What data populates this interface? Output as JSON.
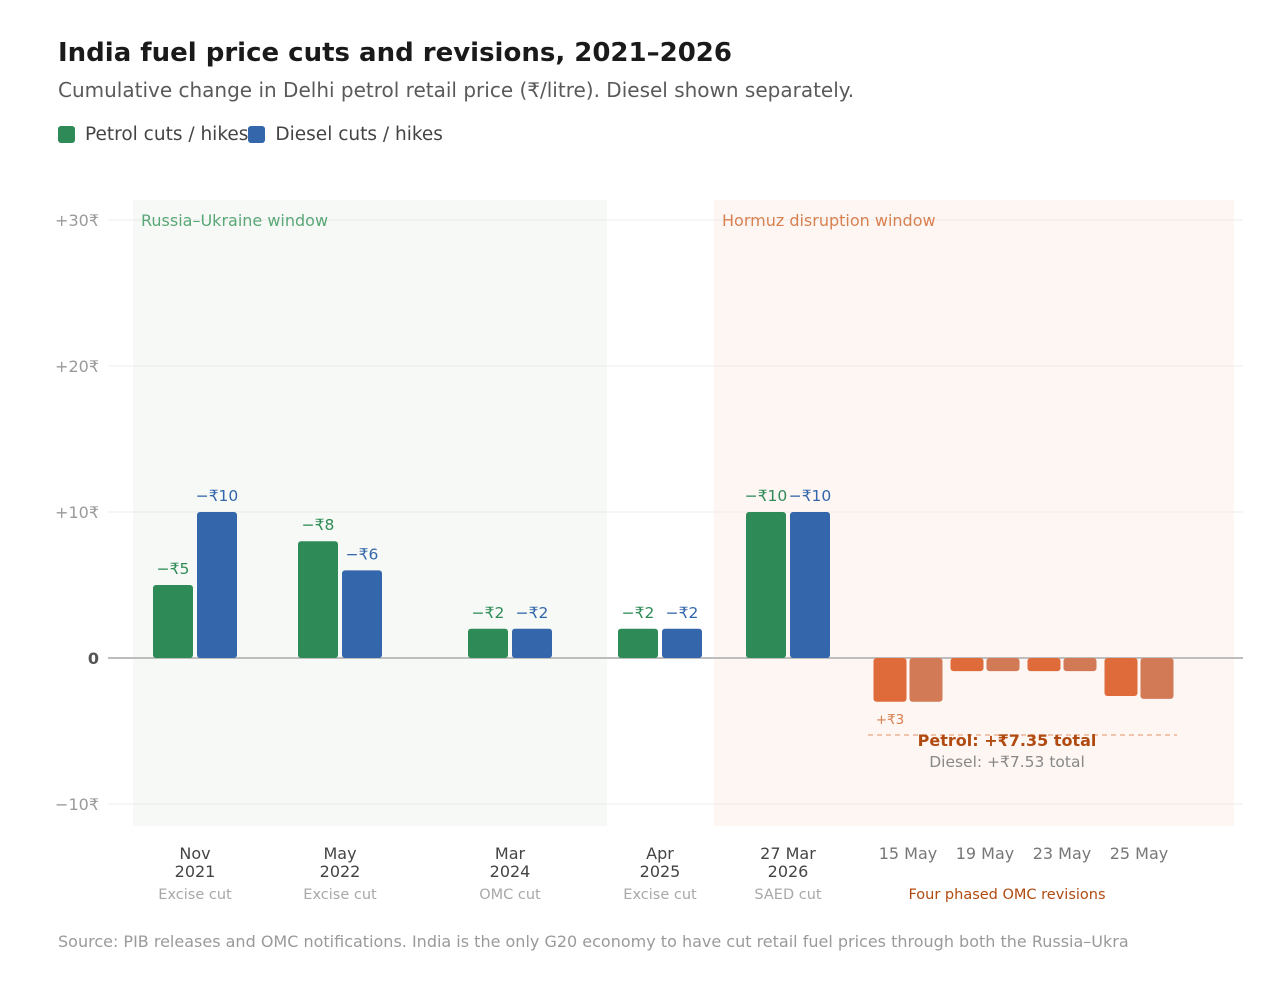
{
  "title": "India fuel price cuts and revisions, 2021–2026",
  "subtitle": "Cumulative change in Delhi petrol retail price (₹/litre). Diesel shown separately.",
  "legend": [
    {
      "label": "Petrol cuts / hikes",
      "color": "#2e8b57"
    },
    {
      "label": "Diesel cuts / hikes",
      "color": "#3366aa"
    }
  ],
  "source": "Source: PIB releases and OMC notifications. India is the only G20 economy to have cut retail fuel prices through both the Russia–Ukra",
  "colors": {
    "petrol": "#2e8b57",
    "diesel": "#3366aa",
    "petrol_hike": "#e06b3a",
    "diesel_hike": "#d27a55",
    "window_russia_bg": "#f6f9f5",
    "window_hormuz_bg": "#fdf6f3",
    "window_russia_text": "#5aa777",
    "window_hormuz_text": "#d98050",
    "annotation": "#b04a10"
  },
  "chart_data": {
    "type": "bar",
    "ylim": [
      -11.5,
      31.5
    ],
    "yticks": [
      30,
      20,
      10,
      0,
      -10
    ],
    "ytick_labels": [
      "+30₹",
      "+20₹",
      "+10₹",
      "0",
      "−10₹"
    ],
    "grid": true,
    "legend_position": "top-left",
    "windows": [
      {
        "label": "Russia–Ukraine window",
        "from": "Nov 2021",
        "to": "Apr 2025"
      },
      {
        "label": "Hormuz disruption window",
        "from": "27 Mar 2026",
        "to": "25 May"
      }
    ],
    "groups": [
      {
        "id": "nov2021",
        "x_label": [
          "Nov",
          "2021"
        ],
        "sub_label": "Excise cut",
        "petrol": 5,
        "diesel": 10,
        "petrol_label": "−₹5",
        "diesel_label": "−₹10"
      },
      {
        "id": "may2022",
        "x_label": [
          "May",
          "2022"
        ],
        "sub_label": "Excise cut",
        "petrol": 8,
        "diesel": 6,
        "petrol_label": "−₹8",
        "diesel_label": "−₹6"
      },
      {
        "id": "mar2024",
        "x_label": [
          "Mar",
          "2024"
        ],
        "sub_label": "OMC cut",
        "petrol": 2,
        "diesel": 2,
        "petrol_label": "−₹2",
        "diesel_label": "−₹2"
      },
      {
        "id": "apr2025",
        "x_label": [
          "Apr",
          "2025"
        ],
        "sub_label": "Excise cut",
        "petrol": 2,
        "diesel": 2,
        "petrol_label": "−₹2",
        "diesel_label": "−₹2"
      },
      {
        "id": "mar2026",
        "x_label": [
          "27 Mar",
          "2026"
        ],
        "sub_label": "SAED cut",
        "petrol": 10,
        "diesel": 10,
        "petrol_label": "−₹10",
        "diesel_label": "−₹10"
      },
      {
        "id": "may15",
        "x_label": [
          "15 May"
        ],
        "petrol": -3,
        "diesel": -3,
        "petrol_label": "+₹3",
        "hike": true
      },
      {
        "id": "may19",
        "x_label": [
          "19 May"
        ],
        "petrol": -0.9,
        "diesel": -0.9,
        "hike": true
      },
      {
        "id": "may23",
        "x_label": [
          "23 May"
        ],
        "petrol": -0.9,
        "diesel": -0.9,
        "hike": true
      },
      {
        "id": "may25",
        "x_label": [
          "25 May"
        ],
        "petrol": -2.6,
        "diesel": -2.8,
        "hike": true
      }
    ],
    "revisions_label": "Four phased OMC revisions",
    "annotation": {
      "petrol_total": "Petrol: +₹7.35 total",
      "diesel_total": "Diesel: +₹7.53 total"
    }
  }
}
